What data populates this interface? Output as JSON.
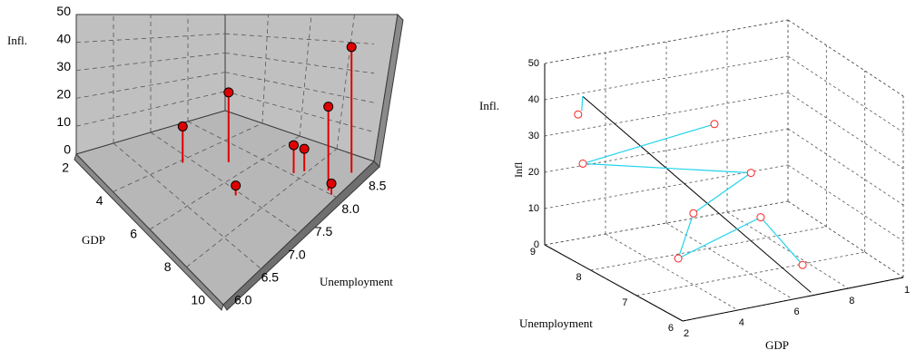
{
  "colors": {
    "left_panel_fill": "#c0c0c0",
    "left_floor_fill": "#b4b4b4",
    "left_frame": "#3a3a3a",
    "stem_color": "#e00000",
    "marker_fill": "#e00000",
    "right_marker_edge": "#ff2222",
    "right_link_color": "#22d3ee",
    "right_trace_color": "#000000",
    "grid_color": "#555555"
  },
  "chart_data": [
    {
      "type": "scatter",
      "variant": "3d-stem",
      "zlabel": "Infl.",
      "xlabel": "GDP",
      "ylabel": "Unemployment",
      "z_ticks": [
        "0",
        "10",
        "20",
        "30",
        "40",
        "50"
      ],
      "x_ticks": [
        "2",
        "4",
        "6",
        "8",
        "10"
      ],
      "y_ticks": [
        "6.0",
        "6.5",
        "7.0",
        "7.5",
        "8.0",
        "8.5"
      ],
      "xlim": [
        2,
        10
      ],
      "ylim": [
        6.0,
        9.0
      ],
      "zlim": [
        0,
        50
      ],
      "grid": true,
      "points": [
        {
          "gdp": 2.8,
          "unemployment": 6.15,
          "infl": 45
        },
        {
          "gdp": 3.9,
          "unemployment": 6.2,
          "infl": 30
        },
        {
          "gdp": 3.9,
          "unemployment": 6.9,
          "infl": 10
        },
        {
          "gdp": 3.6,
          "unemployment": 6.8,
          "infl": 8
        },
        {
          "gdp": 5.0,
          "unemployment": 7.8,
          "infl": 25
        },
        {
          "gdp": 4.0,
          "unemployment": 6.1,
          "infl": 4
        },
        {
          "gdp": 6.4,
          "unemployment": 8.2,
          "infl": 13
        },
        {
          "gdp": 6.2,
          "unemployment": 7.2,
          "infl": 3.5
        }
      ]
    },
    {
      "type": "scatter",
      "variant": "3d-scatter",
      "ylabel_side": "Infl.",
      "zlabel": "Infl",
      "xlabel": "GDP",
      "ylabel": "Unemployment",
      "z_ticks": [
        "0",
        "10",
        "20",
        "30",
        "40",
        "50"
      ],
      "x_ticks": [
        "2",
        "4",
        "6",
        "8",
        "1"
      ],
      "y_ticks": [
        "6",
        "7",
        "8",
        "9"
      ],
      "xlim": [
        2,
        10
      ],
      "ylim": [
        6,
        9
      ],
      "zlim": [
        0,
        50
      ],
      "grid": true,
      "points": [
        {
          "gdp": 2.5,
          "unemployment": 8.6,
          "infl": 38
        },
        {
          "gdp": 2.2,
          "unemployment": 8.3,
          "infl": 27
        },
        {
          "gdp": 6.2,
          "unemployment": 8.0,
          "infl": 34
        },
        {
          "gdp": 6.3,
          "unemployment": 7.2,
          "infl": 26
        },
        {
          "gdp": 4.6,
          "unemployment": 7.4,
          "infl": 16
        },
        {
          "gdp": 3.3,
          "unemployment": 6.9,
          "infl": 9
        },
        {
          "gdp": 6.2,
          "unemployment": 6.9,
          "infl": 16
        },
        {
          "gdp": 6.5,
          "unemployment": 6.1,
          "infl": 8
        }
      ],
      "links": [
        [
          0,
          0
        ],
        [
          1,
          2
        ],
        [
          1,
          3
        ],
        [
          3,
          4
        ],
        [
          4,
          5
        ],
        [
          5,
          6
        ],
        [
          6,
          7
        ]
      ],
      "trace": [
        {
          "gdp": 3.1,
          "unemployment": 8.9,
          "infl": 40
        },
        {
          "gdp": 6.8,
          "unemployment": 6.1,
          "infl": 0
        }
      ]
    }
  ]
}
